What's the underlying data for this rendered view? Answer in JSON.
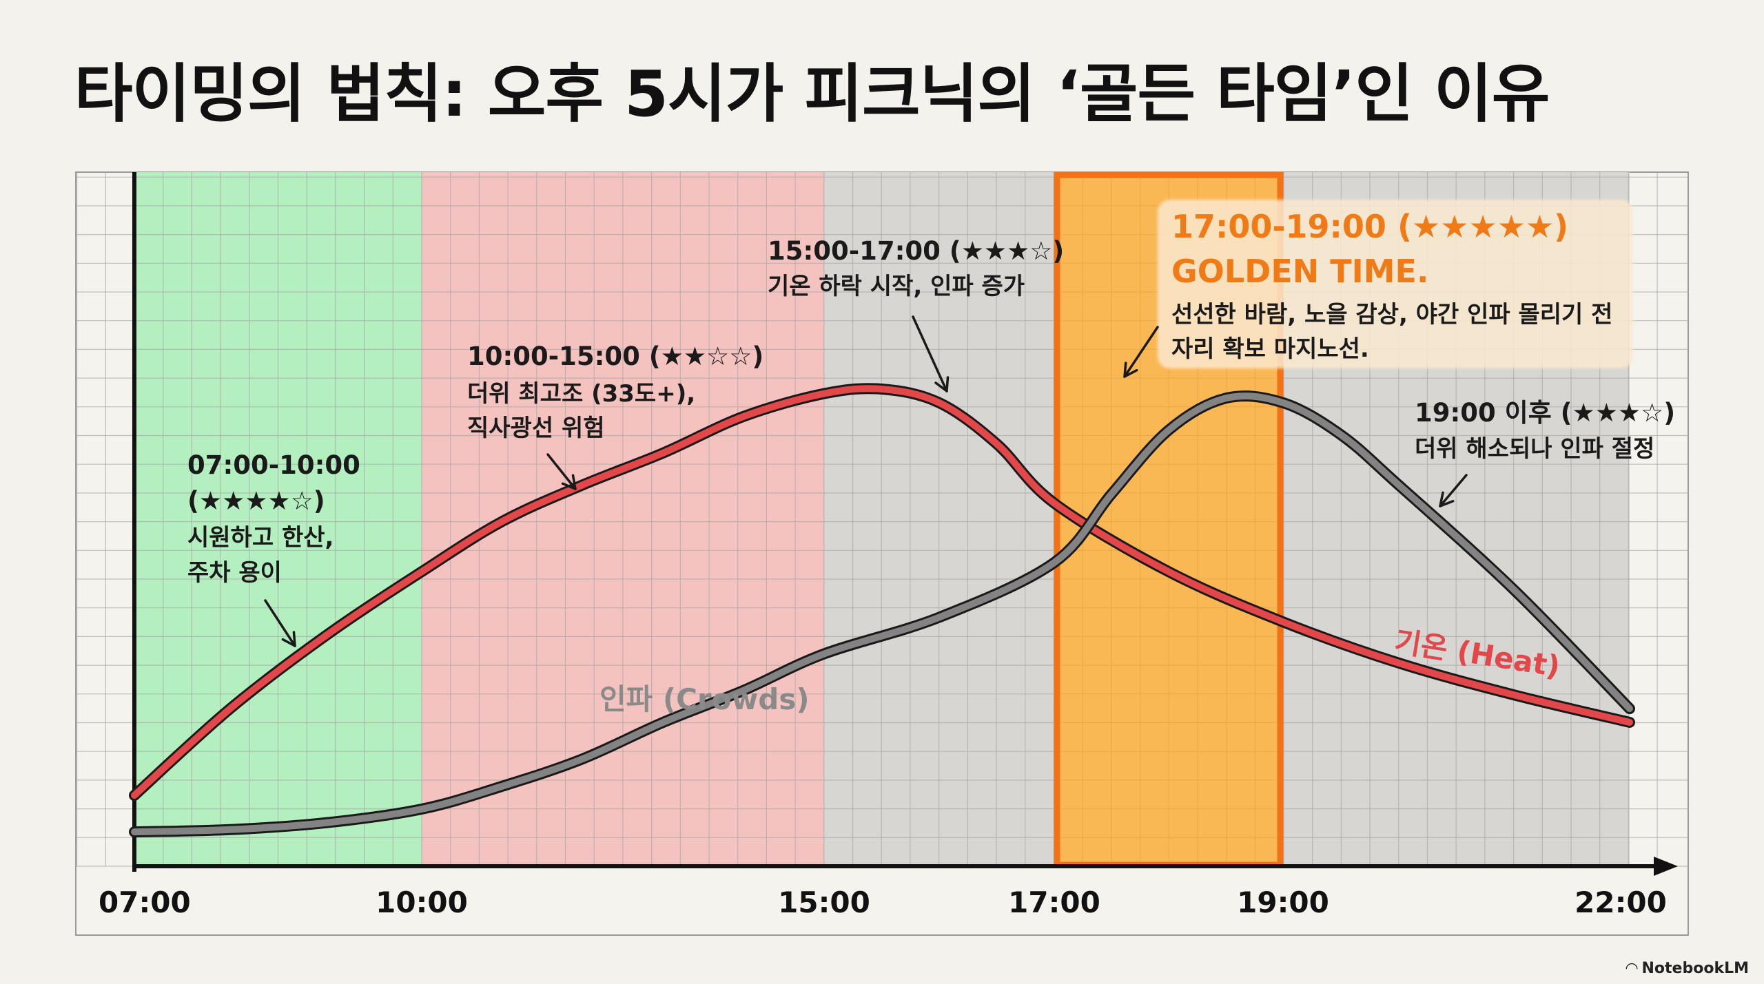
{
  "title": "타이밍의 법칙: 오후 5시가 피크닉의 ‘골든 타임’인 이유",
  "brand": "NotebookLM",
  "colors": {
    "bg": "#f3f2ec",
    "green_zone": "#b4efbf",
    "red_zone": "#f4c3bf",
    "gray_zone": "#d7d6d2",
    "golden_zone": "#fdb54a",
    "golden_border": "#f47216",
    "heat": "#e2484a",
    "crowds": "#838383",
    "grid": "#a9a9a9"
  },
  "chart_data": {
    "type": "line",
    "x_ticks": [
      "07:00",
      "10:00",
      "15:00",
      "17:00",
      "19:00",
      "22:00"
    ],
    "grid": true,
    "zones": [
      {
        "from": "07:00",
        "to": "10:00",
        "color": "green_zone"
      },
      {
        "from": "10:00",
        "to": "15:00",
        "color": "red_zone"
      },
      {
        "from": "15:00",
        "to": "22:00",
        "color": "gray_zone"
      },
      {
        "from": "17:00",
        "to": "19:00",
        "color": "golden_zone",
        "highlight": true
      }
    ],
    "series": [
      {
        "name": "기온 (Heat)",
        "color": "heat",
        "points": [
          [
            "07:00",
            0.11
          ],
          [
            "08:00",
            0.3
          ],
          [
            "09:00",
            0.46
          ],
          [
            "10:00",
            0.6
          ],
          [
            "11:00",
            0.71
          ],
          [
            "12:00",
            0.79
          ],
          [
            "13:00",
            0.86
          ],
          [
            "14:00",
            0.94
          ],
          [
            "15:00",
            0.99
          ],
          [
            "15:30",
            1.0
          ],
          [
            "16:00",
            0.97
          ],
          [
            "16:30",
            0.88
          ],
          [
            "17:00",
            0.75
          ],
          [
            "18:00",
            0.6
          ],
          [
            "19:00",
            0.49
          ],
          [
            "20:00",
            0.4
          ],
          [
            "21:00",
            0.33
          ],
          [
            "22:00",
            0.27
          ]
        ]
      },
      {
        "name": "인파 (Crowds)",
        "color": "crowds",
        "points": [
          [
            "07:00",
            0.03
          ],
          [
            "08:00",
            0.035
          ],
          [
            "09:00",
            0.05
          ],
          [
            "10:00",
            0.08
          ],
          [
            "11:00",
            0.13
          ],
          [
            "12:00",
            0.19
          ],
          [
            "13:00",
            0.27
          ],
          [
            "14:00",
            0.34
          ],
          [
            "15:00",
            0.42
          ],
          [
            "16:00",
            0.5
          ],
          [
            "17:00",
            0.62
          ],
          [
            "17:30",
            0.77
          ],
          [
            "18:00",
            0.91
          ],
          [
            "18:30",
            0.98
          ],
          [
            "19:00",
            0.97
          ],
          [
            "19:30",
            0.9
          ],
          [
            "20:00",
            0.79
          ],
          [
            "21:00",
            0.56
          ],
          [
            "22:00",
            0.3
          ]
        ]
      }
    ],
    "series_labels": {
      "heat": "기온 (Heat)",
      "crowds": "인파 (Crowds)"
    },
    "annotations": [
      {
        "header": "07:00-10:00",
        "rating": "(★★★★☆)",
        "lines": [
          "시원하고 한산,",
          "주차 용이"
        ]
      },
      {
        "header": "10:00-15:00 (★★☆☆)",
        "lines": [
          "더위 최고조 (33도+),",
          "직사광선 위험"
        ]
      },
      {
        "header": "15:00-17:00 (★★★☆)",
        "lines": [
          "기온 하락 시작, 인파 증가"
        ]
      },
      {
        "header": "17:00-19:00 (★★★★★)",
        "subheader": "GOLDEN TIME.",
        "lines": [
          "선선한 바람, 노을 감상, 야간 인파 몰리기 전",
          "자리 확보 마지노선."
        ]
      },
      {
        "header": "19:00 이후 (★★★☆)",
        "lines": [
          "더위 해소되나 인파 절정"
        ]
      }
    ]
  }
}
